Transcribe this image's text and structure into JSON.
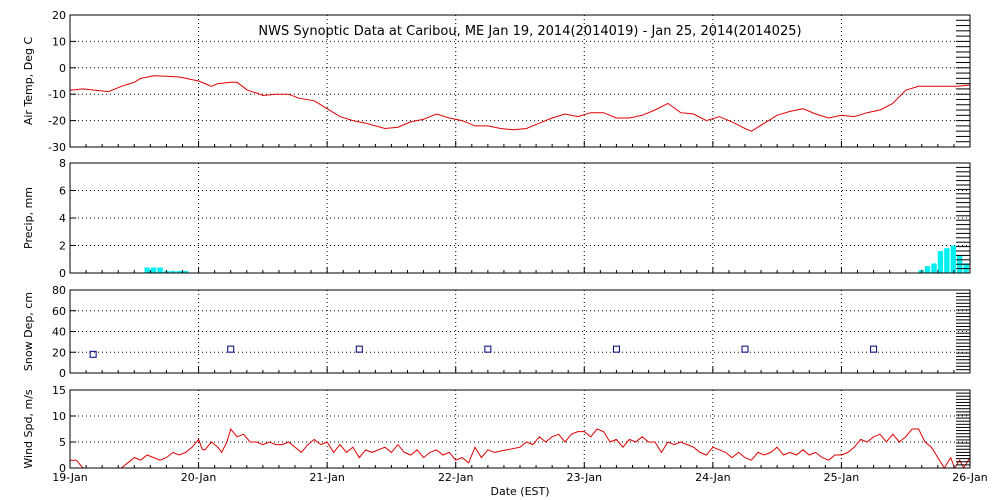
{
  "chart_data": {
    "type": "multi-panel-timeseries",
    "title": "NWS Synoptic Data at Caribou, ME   Jan 19, 2014(2014019) - Jan 25, 2014(2014025)",
    "xlabel": "Date (EST)",
    "x_ticks": [
      "19-Jan",
      "20-Jan",
      "21-Jan",
      "22-Jan",
      "23-Jan",
      "24-Jan",
      "25-Jan",
      "26-Jan"
    ],
    "xlim": [
      0,
      7
    ],
    "colors": {
      "line": "#e00000",
      "precip": "#00f0f0",
      "snow": "#000080"
    },
    "panels": [
      {
        "ylabel": "Air Temp, Deg C",
        "ylim": [
          -30,
          20
        ],
        "yticks": [
          "20",
          "10",
          "0",
          "-10",
          "-20",
          "-30"
        ],
        "yticks_values": [
          20,
          10,
          0,
          -10,
          -20,
          -30
        ],
        "series": [
          {
            "type": "line",
            "points": [
              [
                0,
                -8.5
              ],
              [
                0.1,
                -8
              ],
              [
                0.2,
                -8.5
              ],
              [
                0.3,
                -9
              ],
              [
                0.4,
                -7
              ],
              [
                0.5,
                -5.5
              ],
              [
                0.55,
                -4
              ],
              [
                0.65,
                -3
              ],
              [
                0.75,
                -3.2
              ],
              [
                0.85,
                -3.5
              ],
              [
                1.0,
                -5
              ],
              [
                1.05,
                -6
              ],
              [
                1.1,
                -7
              ],
              [
                1.15,
                -6
              ],
              [
                1.25,
                -5.5
              ],
              [
                1.3,
                -5.5
              ],
              [
                1.38,
                -8.5
              ],
              [
                1.45,
                -9.5
              ],
              [
                1.5,
                -10.5
              ],
              [
                1.6,
                -10
              ],
              [
                1.7,
                -10
              ],
              [
                1.78,
                -11.5
              ],
              [
                1.9,
                -12.5
              ],
              [
                2.0,
                -15.5
              ],
              [
                2.1,
                -18.5
              ],
              [
                2.2,
                -20
              ],
              [
                2.3,
                -21
              ],
              [
                2.45,
                -23
              ],
              [
                2.55,
                -22.5
              ],
              [
                2.65,
                -20.5
              ],
              [
                2.75,
                -19.5
              ],
              [
                2.85,
                -17.5
              ],
              [
                2.95,
                -19
              ],
              [
                3.05,
                -20
              ],
              [
                3.15,
                -22
              ],
              [
                3.25,
                -22
              ],
              [
                3.35,
                -23
              ],
              [
                3.45,
                -23.5
              ],
              [
                3.55,
                -23
              ],
              [
                3.65,
                -21
              ],
              [
                3.75,
                -19
              ],
              [
                3.85,
                -17.5
              ],
              [
                3.95,
                -18.5
              ],
              [
                4.05,
                -17
              ],
              [
                4.15,
                -17
              ],
              [
                4.25,
                -19
              ],
              [
                4.35,
                -19
              ],
              [
                4.45,
                -18
              ],
              [
                4.55,
                -16
              ],
              [
                4.65,
                -13.5
              ],
              [
                4.75,
                -17
              ],
              [
                4.85,
                -17.5
              ],
              [
                4.95,
                -20
              ],
              [
                5.05,
                -18.5
              ],
              [
                5.15,
                -20.5
              ],
              [
                5.25,
                -23
              ],
              [
                5.3,
                -24
              ],
              [
                5.4,
                -21
              ],
              [
                5.5,
                -18
              ],
              [
                5.6,
                -16.5
              ],
              [
                5.7,
                -15.5
              ],
              [
                5.8,
                -17.5
              ],
              [
                5.9,
                -19
              ],
              [
                6.0,
                -18
              ],
              [
                6.1,
                -18.5
              ],
              [
                6.2,
                -17
              ],
              [
                6.3,
                -16
              ],
              [
                6.4,
                -13.5
              ],
              [
                6.5,
                -8.5
              ],
              [
                6.6,
                -7
              ],
              [
                6.7,
                -7
              ],
              [
                6.8,
                -7
              ],
              [
                6.9,
                -7
              ],
              [
                7.0,
                -6.5
              ]
            ]
          }
        ]
      },
      {
        "ylabel": "Precip, mm",
        "ylim": [
          0,
          8
        ],
        "yticks": [
          "8",
          "6",
          "4",
          "2",
          "0"
        ],
        "yticks_values": [
          8,
          6,
          4,
          2,
          0
        ],
        "series": [
          {
            "type": "bar",
            "bar_width": 0.0417,
            "points": [
              [
                0.6,
                0.4
              ],
              [
                0.65,
                0.4
              ],
              [
                0.7,
                0.4
              ],
              [
                0.75,
                0.15
              ],
              [
                0.8,
                0.15
              ],
              [
                0.85,
                0.15
              ],
              [
                0.9,
                0.15
              ],
              [
                6.62,
                0.2
              ],
              [
                6.67,
                0.5
              ],
              [
                6.72,
                0.7
              ],
              [
                6.77,
                1.6
              ],
              [
                6.82,
                1.8
              ],
              [
                6.87,
                2.0
              ],
              [
                6.92,
                1.3
              ],
              [
                6.97,
                0.7
              ]
            ]
          }
        ]
      },
      {
        "ylabel": "Snow Dep, cm",
        "ylim": [
          0,
          80
        ],
        "yticks": [
          "80",
          "60",
          "40",
          "20",
          "0"
        ],
        "yticks_values": [
          80,
          60,
          40,
          20,
          0
        ],
        "series": [
          {
            "type": "marker",
            "points": [
              [
                0.18,
                18
              ],
              [
                1.25,
                23
              ],
              [
                2.25,
                23
              ],
              [
                3.25,
                23
              ],
              [
                4.25,
                23
              ],
              [
                5.25,
                23
              ],
              [
                6.25,
                23
              ]
            ]
          }
        ]
      },
      {
        "ylabel": "Wind Spd, m/s",
        "ylim": [
          0,
          15
        ],
        "yticks": [
          "15",
          "10",
          "5",
          "0"
        ],
        "yticks_values": [
          15,
          10,
          5,
          0
        ],
        "series": [
          {
            "type": "line",
            "points": [
              [
                0,
                1.5
              ],
              [
                0.05,
                1.5
              ],
              [
                0.1,
                0
              ],
              [
                0.4,
                0
              ],
              [
                0.45,
                1
              ],
              [
                0.5,
                2
              ],
              [
                0.55,
                1.5
              ],
              [
                0.6,
                2.5
              ],
              [
                0.65,
                2
              ],
              [
                0.7,
                1.5
              ],
              [
                0.75,
                2
              ],
              [
                0.8,
                3
              ],
              [
                0.85,
                2.5
              ],
              [
                0.9,
                3
              ],
              [
                0.95,
                4
              ],
              [
                1.0,
                5.5
              ],
              [
                1.03,
                3.5
              ],
              [
                1.05,
                3.5
              ],
              [
                1.1,
                5
              ],
              [
                1.15,
                4
              ],
              [
                1.18,
                3
              ],
              [
                1.22,
                5
              ],
              [
                1.25,
                7.5
              ],
              [
                1.3,
                6
              ],
              [
                1.35,
                6.5
              ],
              [
                1.4,
                5
              ],
              [
                1.45,
                5
              ],
              [
                1.5,
                4.5
              ],
              [
                1.55,
                5
              ],
              [
                1.6,
                4.5
              ],
              [
                1.65,
                4.5
              ],
              [
                1.7,
                5
              ],
              [
                1.75,
                4
              ],
              [
                1.8,
                3
              ],
              [
                1.85,
                4.5
              ],
              [
                1.9,
                5.5
              ],
              [
                1.95,
                4.5
              ],
              [
                2.0,
                5
              ],
              [
                2.05,
                3
              ],
              [
                2.1,
                4.5
              ],
              [
                2.15,
                3
              ],
              [
                2.2,
                4
              ],
              [
                2.25,
                2
              ],
              [
                2.3,
                3.5
              ],
              [
                2.35,
                3
              ],
              [
                2.4,
                3.5
              ],
              [
                2.45,
                4
              ],
              [
                2.5,
                3
              ],
              [
                2.55,
                4.5
              ],
              [
                2.6,
                3
              ],
              [
                2.65,
                2.5
              ],
              [
                2.7,
                3.5
              ],
              [
                2.75,
                2
              ],
              [
                2.8,
                3
              ],
              [
                2.85,
                3.5
              ],
              [
                2.9,
                2.5
              ],
              [
                2.95,
                3
              ],
              [
                3.0,
                1.5
              ],
              [
                3.05,
                2
              ],
              [
                3.1,
                1
              ],
              [
                3.15,
                4
              ],
              [
                3.2,
                2
              ],
              [
                3.25,
                3.5
              ],
              [
                3.3,
                3
              ],
              [
                3.4,
                3.5
              ],
              [
                3.5,
                4
              ],
              [
                3.55,
                5
              ],
              [
                3.6,
                4.5
              ],
              [
                3.65,
                6
              ],
              [
                3.7,
                5
              ],
              [
                3.75,
                6
              ],
              [
                3.8,
                6.5
              ],
              [
                3.85,
                5
              ],
              [
                3.9,
                6.5
              ],
              [
                3.95,
                7
              ],
              [
                4.0,
                7
              ],
              [
                4.05,
                6
              ],
              [
                4.1,
                7.5
              ],
              [
                4.15,
                7
              ],
              [
                4.2,
                5
              ],
              [
                4.25,
                5.5
              ],
              [
                4.3,
                4
              ],
              [
                4.35,
                5.5
              ],
              [
                4.4,
                5
              ],
              [
                4.45,
                6
              ],
              [
                4.5,
                5
              ],
              [
                4.55,
                5
              ],
              [
                4.6,
                3
              ],
              [
                4.65,
                5
              ],
              [
                4.7,
                4.5
              ],
              [
                4.75,
                5
              ],
              [
                4.8,
                4.5
              ],
              [
                4.85,
                4
              ],
              [
                4.9,
                3
              ],
              [
                4.95,
                2.5
              ],
              [
                5.0,
                4
              ],
              [
                5.05,
                3.5
              ],
              [
                5.1,
                3
              ],
              [
                5.15,
                2
              ],
              [
                5.2,
                3
              ],
              [
                5.25,
                2
              ],
              [
                5.3,
                1.5
              ],
              [
                5.35,
                3
              ],
              [
                5.4,
                2.5
              ],
              [
                5.45,
                3
              ],
              [
                5.5,
                4
              ],
              [
                5.55,
                2.5
              ],
              [
                5.6,
                3
              ],
              [
                5.65,
                2.5
              ],
              [
                5.7,
                3.5
              ],
              [
                5.75,
                2.5
              ],
              [
                5.8,
                3
              ],
              [
                5.85,
                2
              ],
              [
                5.9,
                1.5
              ],
              [
                5.95,
                2.5
              ],
              [
                6.0,
                2.5
              ],
              [
                6.05,
                3
              ],
              [
                6.1,
                4
              ],
              [
                6.15,
                5.5
              ],
              [
                6.2,
                5
              ],
              [
                6.25,
                6
              ],
              [
                6.3,
                6.5
              ],
              [
                6.35,
                5
              ],
              [
                6.4,
                6.5
              ],
              [
                6.45,
                5
              ],
              [
                6.5,
                6
              ],
              [
                6.55,
                7.5
              ],
              [
                6.6,
                7.5
              ],
              [
                6.65,
                5
              ],
              [
                6.7,
                4
              ],
              [
                6.75,
                2
              ],
              [
                6.8,
                0
              ],
              [
                6.85,
                2
              ],
              [
                6.88,
                0
              ],
              [
                6.92,
                1.5
              ],
              [
                6.95,
                0
              ],
              [
                7.0,
                2
              ]
            ]
          }
        ]
      }
    ]
  }
}
